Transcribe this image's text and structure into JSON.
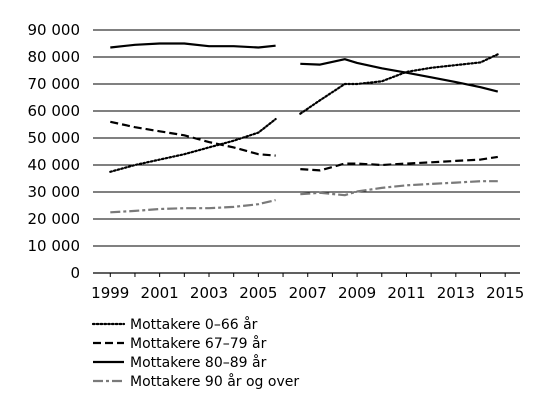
{
  "chart_data": {
    "type": "line",
    "title": "",
    "xlabel": "",
    "ylabel": "",
    "x_ticks": [
      "1999",
      "2001",
      "2003",
      "2005",
      "2007",
      "2009",
      "2011",
      "2013",
      "2015"
    ],
    "y_ticks": [
      "0",
      "10 000",
      "20 000",
      "30 000",
      "40 000",
      "50 000",
      "60 000",
      "70 000",
      "80 000",
      "90 000"
    ],
    "xlim": [
      1998.3,
      2015.6
    ],
    "ylim": [
      0,
      90000
    ],
    "grid": "horizontal",
    "legend_position": "bottom-left",
    "series": [
      {
        "name": "Mottakere 0–66 år",
        "style": "dotted",
        "color": "#000000",
        "segments": [
          {
            "x": [
              1999,
              2000,
              2001,
              2002,
              2003,
              2004,
              2005,
              2005.7
            ],
            "y": [
              37500,
              40000,
              42000,
              44000,
              46500,
              49000,
              52000,
              57000
            ]
          },
          {
            "x": [
              2006.7,
              2007.5,
              2008.5,
              2009,
              2010,
              2011,
              2012,
              2013,
              2014,
              2014.7
            ],
            "y": [
              59000,
              64000,
              70000,
              70000,
              71000,
              74500,
              76000,
              77000,
              78000,
              81000
            ]
          }
        ]
      },
      {
        "name": "Mottakere 67–79 år",
        "style": "dashed",
        "color": "#000000",
        "segments": [
          {
            "x": [
              1999,
              2000,
              2001,
              2002,
              2003,
              2004,
              2005,
              2005.7
            ],
            "y": [
              56000,
              54000,
              52500,
              51000,
              48500,
              46500,
              44000,
              43500
            ]
          },
          {
            "x": [
              2006.7,
              2007.5,
              2008.5,
              2009,
              2010,
              2011,
              2012,
              2013,
              2014,
              2014.7
            ],
            "y": [
              38500,
              38000,
              40500,
              40500,
              40000,
              40500,
              41000,
              41500,
              42000,
              43000
            ]
          }
        ]
      },
      {
        "name": "Mottakere 80–89 år",
        "style": "solid",
        "color": "#000000",
        "segments": [
          {
            "x": [
              1999,
              2000,
              2001,
              2002,
              2003,
              2004,
              2005,
              2005.7
            ],
            "y": [
              83500,
              84500,
              85000,
              85000,
              84000,
              84000,
              83500,
              84200
            ]
          },
          {
            "x": [
              2006.7,
              2007.5,
              2008.5,
              2009,
              2010,
              2011,
              2012,
              2013,
              2014,
              2014.7
            ],
            "y": [
              77500,
              77200,
              79200,
              77800,
              75800,
              74200,
              72500,
              70700,
              68800,
              67200
            ]
          }
        ]
      },
      {
        "name": "Mottakere 90 år og over",
        "style": "dashdot",
        "color": "#7a7a7a",
        "segments": [
          {
            "x": [
              1999,
              2000,
              2001,
              2002,
              2003,
              2004,
              2005,
              2005.7
            ],
            "y": [
              22500,
              23000,
              23700,
              24000,
              24000,
              24500,
              25500,
              27000
            ]
          },
          {
            "x": [
              2006.7,
              2007.5,
              2008.5,
              2009,
              2010,
              2011,
              2012,
              2013,
              2014,
              2014.7
            ],
            "y": [
              29200,
              29700,
              28800,
              30200,
              31500,
              32500,
              33000,
              33500,
              34000,
              34000
            ]
          }
        ]
      }
    ]
  }
}
